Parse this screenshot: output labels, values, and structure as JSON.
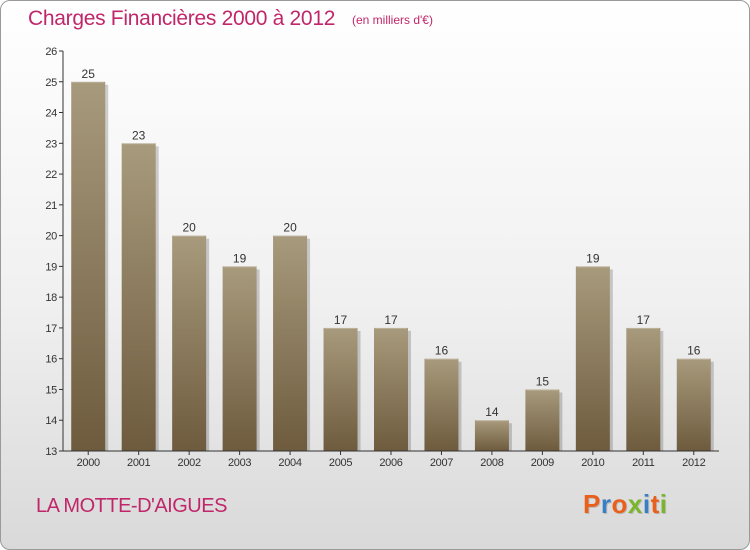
{
  "header": {
    "title": "Charges Financières 2000 à 2012",
    "subtitle": "(en milliers d'€)"
  },
  "footer": {
    "commune": "LA MOTTE-D'AIGUES",
    "logo": "Proxiti",
    "logo_colors": [
      "#e8601c",
      "#3a7fc4",
      "#e8601c",
      "#7ab52c",
      "#3a7fc4",
      "#e8601c",
      "#7ab52c"
    ]
  },
  "colors": {
    "bar_top": "#a89a7c",
    "bar_bottom": "#6e5b3e",
    "text": "#c0276a",
    "axis": "#333333"
  },
  "chart_data": {
    "type": "bar",
    "categories": [
      "2000",
      "2001",
      "2002",
      "2003",
      "2004",
      "2005",
      "2006",
      "2007",
      "2008",
      "2009",
      "2010",
      "2011",
      "2012"
    ],
    "values": [
      25,
      23,
      20,
      19,
      20,
      17,
      17,
      16,
      14,
      15,
      19,
      17,
      16
    ],
    "yticks": [
      13,
      14,
      15,
      16,
      17,
      18,
      19,
      20,
      21,
      22,
      23,
      24,
      25,
      26
    ],
    "ylim": [
      13,
      26
    ],
    "grid": false,
    "data_labels": true
  }
}
